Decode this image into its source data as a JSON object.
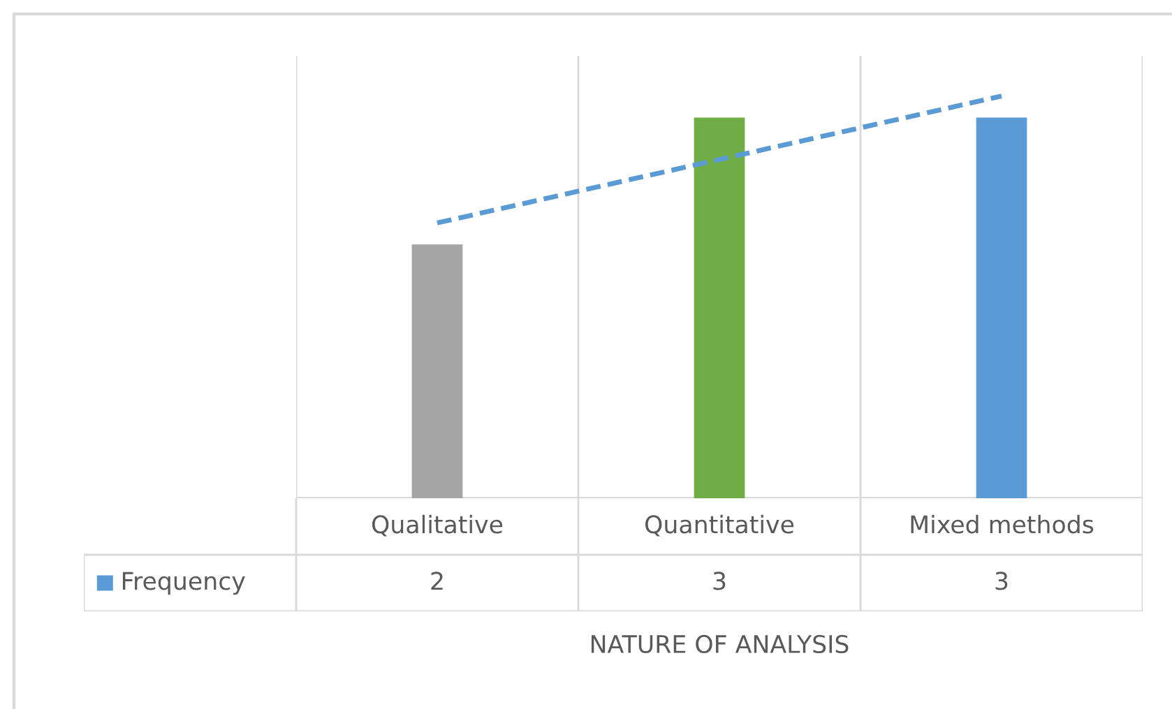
{
  "chart_data": {
    "type": "bar",
    "xlabel": "NATURE OF ANALYSIS",
    "categories": [
      "Qualitative",
      "Quantitative",
      "Mixed methods"
    ],
    "series": [
      {
        "name": "Frequency",
        "color": "#5b9bd5",
        "colors": [
          "#a5a5a5",
          "#70ad47",
          "#5b9bd5"
        ],
        "values": [
          2,
          3,
          3
        ],
        "value_labels": [
          "2",
          "3",
          "3"
        ]
      },
      {
        "type": "line",
        "x": [
          "Qualitative",
          "Mixed methods"
        ],
        "values": [
          2.17,
          3.17
        ],
        "color": "#5b9bd5",
        "line_style": "dashed"
      }
    ],
    "legend": "bottom left"
  }
}
